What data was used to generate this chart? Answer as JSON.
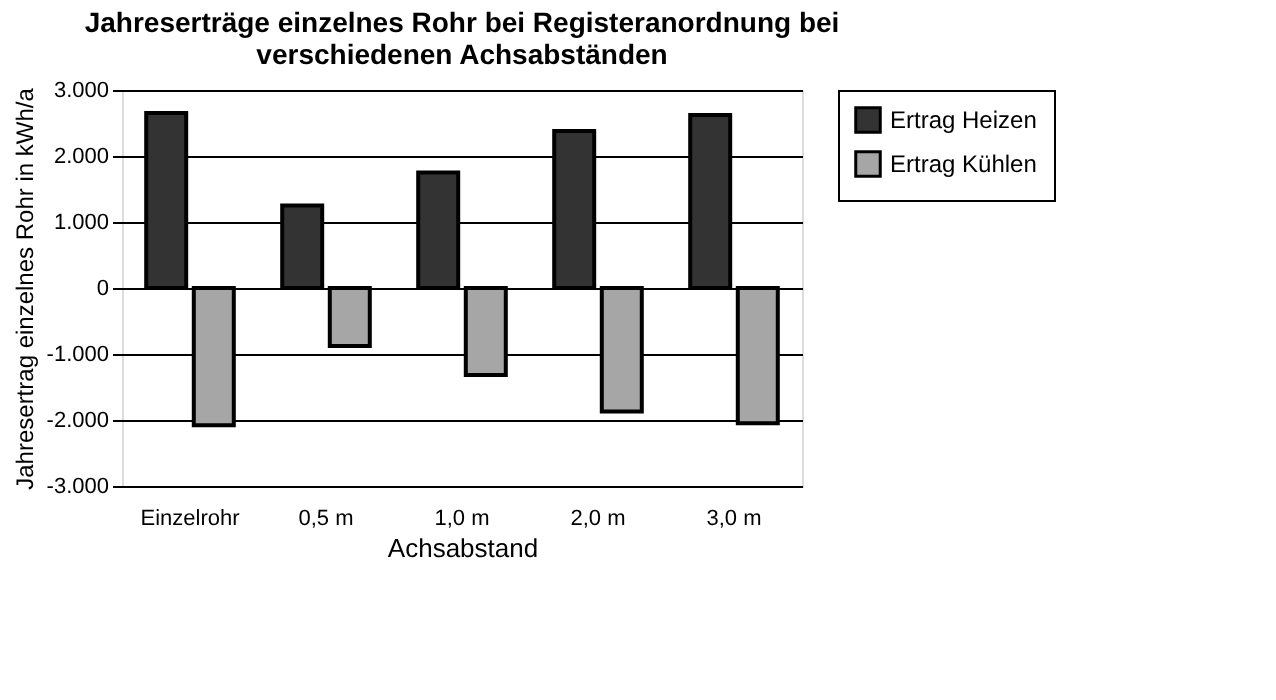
{
  "chart_data": {
    "type": "bar",
    "title": "Jahreserträge einzelnes Rohr bei Registeranordnung bei verschiedenen Achsabständen",
    "xlabel": "Achsabstand",
    "ylabel": "Jahresertrag einzelnes Rohr in kWh/a",
    "categories": [
      "Einzelrohr",
      "0,5 m",
      "1,0 m",
      "2,0 m",
      "3,0 m"
    ],
    "series": [
      {
        "name": "Ertrag Heizen",
        "color": "#333333",
        "values": [
          2650,
          1250,
          1750,
          2380,
          2620
        ]
      },
      {
        "name": "Ertrag Kühlen",
        "color": "#a6a6a6",
        "values": [
          -2080,
          -880,
          -1320,
          -1870,
          -2050
        ]
      }
    ],
    "ylim": [
      -3000,
      3000
    ],
    "yticks": [
      {
        "value": -3000,
        "label": "-3.000"
      },
      {
        "value": -2000,
        "label": "-2.000"
      },
      {
        "value": -1000,
        "label": "-1.000"
      },
      0,
      {
        "value": 1000,
        "label": "1.000"
      },
      {
        "value": 2000,
        "label": "2.000"
      },
      {
        "value": 3000,
        "label": "3.000"
      }
    ],
    "grid": "y",
    "legend": "right"
  }
}
